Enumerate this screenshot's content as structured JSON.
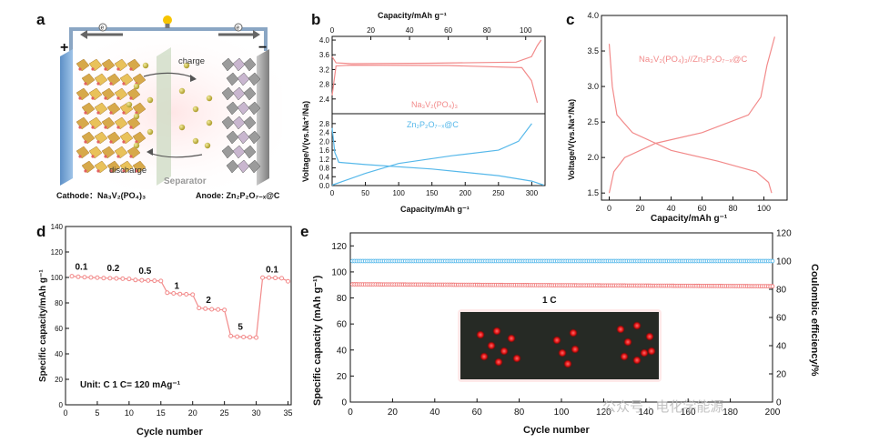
{
  "panels": {
    "a": "a",
    "b": "b",
    "c": "c",
    "d": "d",
    "e": "e"
  },
  "schematic": {
    "cathode_caption": "Cathode：Na₃V₂(PO₄)₃",
    "anode_caption": "Anode: Zn₂P₂O₇₋ₓ@C",
    "charge": "charge",
    "discharge": "discharge",
    "separator": "Separator",
    "plus": "+",
    "minus": "−",
    "electron": "e"
  },
  "watermark": "公众号 · 电化学能源",
  "chart_data": [
    {
      "id": "b",
      "type": "line",
      "xlabel_top": "Capacity/mAh g⁻¹",
      "xlabel_bottom": "Capacity/mAh g⁻¹",
      "ylabel": "Voltage/V(vs.Na⁺/Na)",
      "top_axis": {
        "xlim": [
          0,
          110
        ],
        "ticks": [
          0,
          20,
          40,
          60,
          80,
          100
        ],
        "ylim": [
          2.0,
          4.1
        ],
        "yticks": [
          "2.4",
          "2.8",
          "3.2",
          "3.6",
          "4.0"
        ]
      },
      "bottom_axis": {
        "xlim": [
          0,
          320
        ],
        "ticks": [
          0,
          50,
          100,
          150,
          200,
          250,
          300
        ],
        "ylim": [
          0.0,
          3.0
        ],
        "yticks": [
          "0.0",
          "0.4",
          "0.8",
          "1.2",
          "1.6",
          "2.0",
          "2.4",
          "2.8"
        ]
      },
      "top_series": {
        "name": "Na₃V₂(PO₄)₃",
        "color": "#f28a8a",
        "charge": [
          [
            0,
            3.55
          ],
          [
            2,
            3.38
          ],
          [
            10,
            3.36
          ],
          [
            50,
            3.37
          ],
          [
            95,
            3.4
          ],
          [
            103,
            3.55
          ],
          [
            106,
            3.85
          ],
          [
            108,
            4.0
          ]
        ],
        "discharge": [
          [
            0,
            2.5
          ],
          [
            2,
            3.3
          ],
          [
            10,
            3.32
          ],
          [
            60,
            3.31
          ],
          [
            98,
            3.25
          ],
          [
            103,
            2.9
          ],
          [
            106,
            2.3
          ]
        ]
      },
      "bottom_series": {
        "name": "Zn₂P₂O₇₋ₓ@C",
        "color": "#56b8ea",
        "discharge": [
          [
            0,
            2.6
          ],
          [
            4,
            1.5
          ],
          [
            10,
            1.05
          ],
          [
            50,
            0.95
          ],
          [
            150,
            0.75
          ],
          [
            250,
            0.45
          ],
          [
            300,
            0.2
          ],
          [
            318,
            0.02
          ]
        ],
        "charge": [
          [
            0,
            0.02
          ],
          [
            50,
            0.55
          ],
          [
            100,
            1.0
          ],
          [
            180,
            1.35
          ],
          [
            250,
            1.6
          ],
          [
            280,
            2.0
          ],
          [
            300,
            2.8
          ]
        ]
      }
    },
    {
      "id": "c",
      "type": "line",
      "xlabel": "Capacity/mAh g⁻¹",
      "ylabel": "Voltage/V(vs.Na⁺/Na)",
      "xlim": [
        -5,
        115
      ],
      "ylim": [
        1.4,
        4.0
      ],
      "xticks": [
        0,
        20,
        40,
        60,
        80,
        100
      ],
      "yticks": [
        "1.5",
        "2.0",
        "2.5",
        "3.0",
        "3.5",
        "4.0"
      ],
      "series_label": "Na₃V₂(PO₄)₃//Zn₂P₂O₇₋ₓ@C",
      "color": "#f28a8a",
      "charge": [
        [
          0,
          1.5
        ],
        [
          3,
          1.8
        ],
        [
          10,
          2.0
        ],
        [
          30,
          2.2
        ],
        [
          60,
          2.35
        ],
        [
          90,
          2.6
        ],
        [
          98,
          2.85
        ],
        [
          102,
          3.3
        ],
        [
          107,
          3.7
        ]
      ],
      "discharge": [
        [
          0,
          3.6
        ],
        [
          2,
          3.0
        ],
        [
          5,
          2.6
        ],
        [
          15,
          2.35
        ],
        [
          40,
          2.1
        ],
        [
          70,
          1.95
        ],
        [
          95,
          1.8
        ],
        [
          103,
          1.65
        ],
        [
          105,
          1.5
        ]
      ]
    },
    {
      "id": "d",
      "type": "scatter",
      "xlabel": "Cycle number",
      "ylabel": "Specific capacity/mAh g⁻¹",
      "xlim": [
        0,
        35.5
      ],
      "ylim": [
        0,
        140
      ],
      "xticks": [
        0,
        5,
        10,
        15,
        20,
        25,
        30,
        35
      ],
      "yticks": [
        0,
        20,
        40,
        60,
        80,
        100,
        120,
        140
      ],
      "color": "#f28a8a",
      "values": [
        101,
        100.5,
        100.2,
        100,
        99.8,
        99.5,
        99.4,
        99.2,
        99,
        98.8,
        98,
        97.8,
        97.6,
        97.4,
        97.2,
        88,
        87.5,
        87,
        86.8,
        86.5,
        76,
        75.5,
        75,
        74.8,
        74.5,
        54,
        53.5,
        53.2,
        53,
        52.8,
        99.8,
        99.8,
        99.6,
        99.4,
        97
      ],
      "rate_labels": [
        {
          "text": "0.1",
          "x": 2.5,
          "y": 106
        },
        {
          "text": "0.2",
          "x": 7.5,
          "y": 105
        },
        {
          "text": "0.5",
          "x": 12.5,
          "y": 103
        },
        {
          "text": "1",
          "x": 17.5,
          "y": 91
        },
        {
          "text": "2",
          "x": 22.5,
          "y": 80
        },
        {
          "text": "5",
          "x": 27.5,
          "y": 59
        },
        {
          "text": "0.1",
          "x": 32.5,
          "y": 104
        }
      ],
      "note": "Unit: C  1 C= 120 mAg⁻¹"
    },
    {
      "id": "e",
      "type": "scatter",
      "xlabel": "Cycle number",
      "ylabel_left": "Specific capacity (mAh g⁻¹)",
      "ylabel_right": "Coulombic efficiency/%",
      "xlim": [
        0,
        200
      ],
      "ylim_left": [
        0,
        130
      ],
      "ylim_right": [
        0,
        120
      ],
      "xticks": [
        0,
        20,
        40,
        60,
        80,
        100,
        120,
        140,
        160,
        180,
        200
      ],
      "yticks_left": [
        0,
        20,
        40,
        60,
        80,
        100,
        120
      ],
      "yticks_right": [
        0,
        20,
        40,
        60,
        80,
        100,
        120
      ],
      "capacity": {
        "start": 90.5,
        "end": 89,
        "color": "#f07a7a"
      },
      "efficiency": {
        "value": 100,
        "color": "#56b8ea"
      },
      "rate_label": "1 C"
    }
  ]
}
